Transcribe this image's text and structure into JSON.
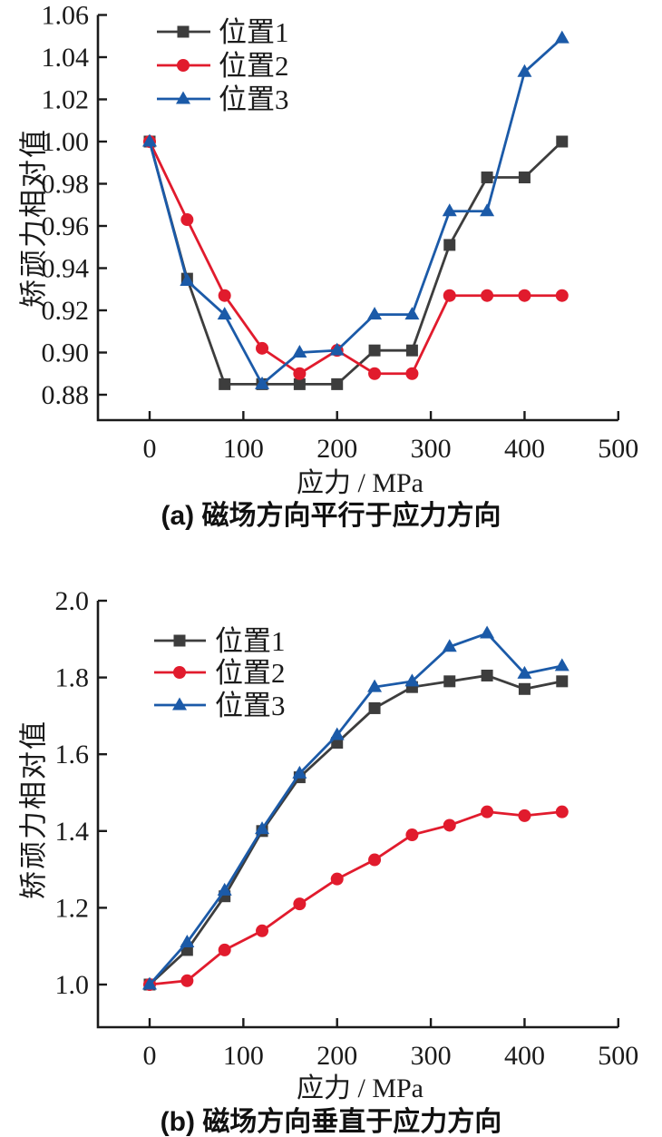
{
  "chart_data": [
    {
      "type": "line",
      "panel": "a",
      "caption": "(a) 磁场方向平行于应力方向",
      "xlabel": "应力 / MPa",
      "ylabel": "矫顽力相对值",
      "x": [
        0,
        40,
        80,
        120,
        160,
        200,
        240,
        280,
        320,
        360,
        400,
        440
      ],
      "series": [
        {
          "name": "位置1",
          "marker": "square",
          "color": "#3d3d3d",
          "values": [
            1.0,
            0.935,
            0.885,
            0.885,
            0.885,
            0.885,
            0.901,
            0.901,
            0.951,
            0.983,
            0.983,
            1.0
          ]
        },
        {
          "name": "位置2",
          "marker": "circle",
          "color": "#e11b2d",
          "values": [
            1.0,
            0.963,
            0.927,
            0.902,
            0.89,
            0.901,
            0.89,
            0.89,
            0.927,
            0.927,
            0.927,
            0.927
          ]
        },
        {
          "name": "位置3",
          "marker": "triangle",
          "color": "#1b5aa8",
          "values": [
            1.0,
            0.934,
            0.918,
            0.885,
            0.9,
            0.901,
            0.918,
            0.918,
            0.967,
            0.967,
            1.033,
            1.049
          ]
        }
      ],
      "xlim": [
        -55,
        500
      ],
      "ylim": [
        0.868,
        1.062
      ],
      "x_ticks": [
        0,
        100,
        200,
        300,
        400,
        500
      ],
      "y_ticks": [
        "0.88",
        "0.90",
        "0.92",
        "0.94",
        "0.96",
        "0.98",
        "1.00",
        "1.02",
        "1.04",
        "1.06"
      ],
      "grid": false,
      "legend_position": "upper-left-inside"
    },
    {
      "type": "line",
      "panel": "b",
      "caption": "(b) 磁场方向垂直于应力方向",
      "xlabel": "应力 / MPa",
      "ylabel": "矫顽力相对值",
      "x": [
        0,
        40,
        80,
        120,
        160,
        200,
        240,
        280,
        320,
        360,
        400,
        440
      ],
      "series": [
        {
          "name": "位置1",
          "marker": "square",
          "color": "#3d3d3d",
          "values": [
            1.0,
            1.09,
            1.23,
            1.4,
            1.54,
            1.63,
            1.72,
            1.775,
            1.79,
            1.805,
            1.77,
            1.79
          ]
        },
        {
          "name": "位置2",
          "marker": "circle",
          "color": "#e11b2d",
          "values": [
            1.0,
            1.01,
            1.09,
            1.14,
            1.21,
            1.275,
            1.325,
            1.39,
            1.415,
            1.45,
            1.44,
            1.45
          ]
        },
        {
          "name": "位置3",
          "marker": "triangle",
          "color": "#1b5aa8",
          "values": [
            1.0,
            1.11,
            1.245,
            1.405,
            1.55,
            1.65,
            1.775,
            1.79,
            1.88,
            1.915,
            1.81,
            1.83
          ]
        }
      ],
      "xlim": [
        -55,
        500
      ],
      "ylim": [
        0.877,
        2.028
      ],
      "x_ticks": [
        0,
        100,
        200,
        300,
        400,
        500
      ],
      "y_ticks": [
        "1.0",
        "1.2",
        "1.4",
        "1.6",
        "1.8",
        "2.0"
      ],
      "grid": false,
      "legend_position": "upper-left-inside"
    }
  ]
}
